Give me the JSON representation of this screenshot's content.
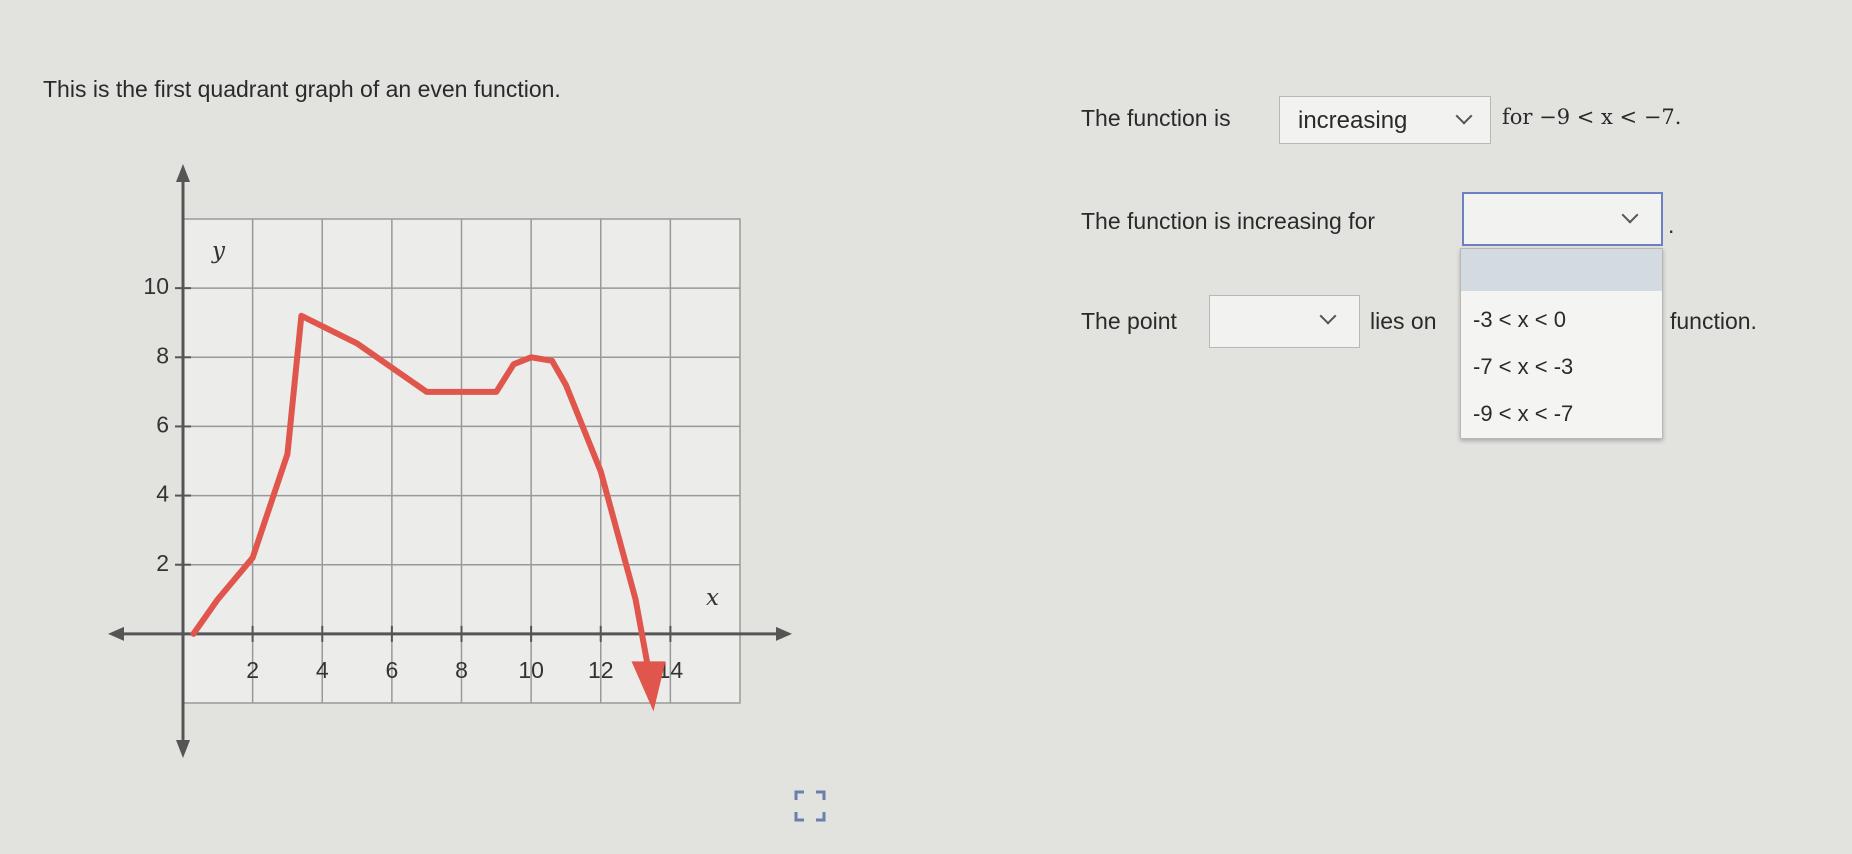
{
  "prompt": "This is the first quadrant graph of an even function.",
  "graph": {
    "type": "line",
    "x_label": "x",
    "y_label": "y",
    "xlim": [
      0,
      16
    ],
    "ylim": [
      -2,
      12
    ],
    "xticks": [
      2,
      4,
      6,
      8,
      10,
      12,
      14
    ],
    "yticks": [
      2,
      4,
      6,
      8,
      10
    ],
    "color": "#e0564d",
    "curve": {
      "x": [
        0.3,
        1,
        2,
        3,
        3.4,
        5,
        7,
        8,
        9,
        9.5,
        10,
        10.6,
        11,
        12,
        13,
        13.4
      ],
      "y": [
        0,
        1,
        2.2,
        5.2,
        9.2,
        8.4,
        7,
        7,
        7,
        7.8,
        8,
        7.9,
        7.2,
        4.7,
        1,
        -1.2
      ]
    }
  },
  "questions": [
    {
      "before": "The function is",
      "selected": "increasing",
      "after": "for −9 < x < −7."
    },
    {
      "before": "The function is increasing for",
      "after": "."
    },
    {
      "before": "The point",
      "middle": "lies on",
      "after": "function."
    }
  ],
  "dropdown_options": [
    "-3 < x < 0",
    "-7 < x < -3",
    "-9 < x < -7"
  ]
}
